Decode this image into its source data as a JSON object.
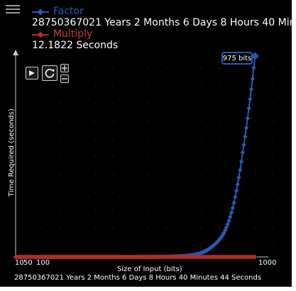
{
  "legend": {
    "series": [
      {
        "name": "Factor",
        "value": "28750367021 Years 2 Months 6 Days 8 Hours 40 Minutes 44 Seconds",
        "color": "#2a5bb5"
      },
      {
        "name": "Multiply",
        "value": "12.1822 Seconds",
        "color": "#b52a2a"
      }
    ]
  },
  "tooltip": {
    "text": "975 bits"
  },
  "bottom_readout": "28750367021 Years 2 Months 6 Days 8 Hours 40 Minutes 44 Seconds",
  "icons": {
    "menu": "hamburger-icon",
    "play": "play-icon",
    "reset": "refresh-icon",
    "zoom_in": "plus-icon",
    "zoom_out": "minus-icon"
  },
  "chart_data": {
    "type": "line",
    "xlabel": "Size of Input (bits)",
    "ylabel": "Time Required (seconds)",
    "x_ticks": [
      "10",
      "50",
      "100",
      "1000"
    ],
    "xlim": [
      10,
      1000
    ],
    "grid": true,
    "legend_position": "top-left",
    "series": [
      {
        "name": "Factor",
        "color": "#2a5bb5",
        "x": [
          10,
          100,
          200,
          300,
          400,
          500,
          600,
          700,
          750,
          800,
          850,
          900,
          925,
          950,
          975
        ],
        "y_relative": [
          0,
          0,
          0,
          0,
          0,
          0,
          0.001,
          0.006,
          0.017,
          0.05,
          0.12,
          0.33,
          0.52,
          0.74,
          1.0
        ]
      },
      {
        "name": "Multiply",
        "color": "#b52a2a",
        "x": [
          10,
          200,
          400,
          600,
          700,
          800,
          900,
          975
        ],
        "y_relative": [
          0,
          0,
          0,
          0,
          0,
          0,
          0,
          0
        ]
      }
    ]
  }
}
